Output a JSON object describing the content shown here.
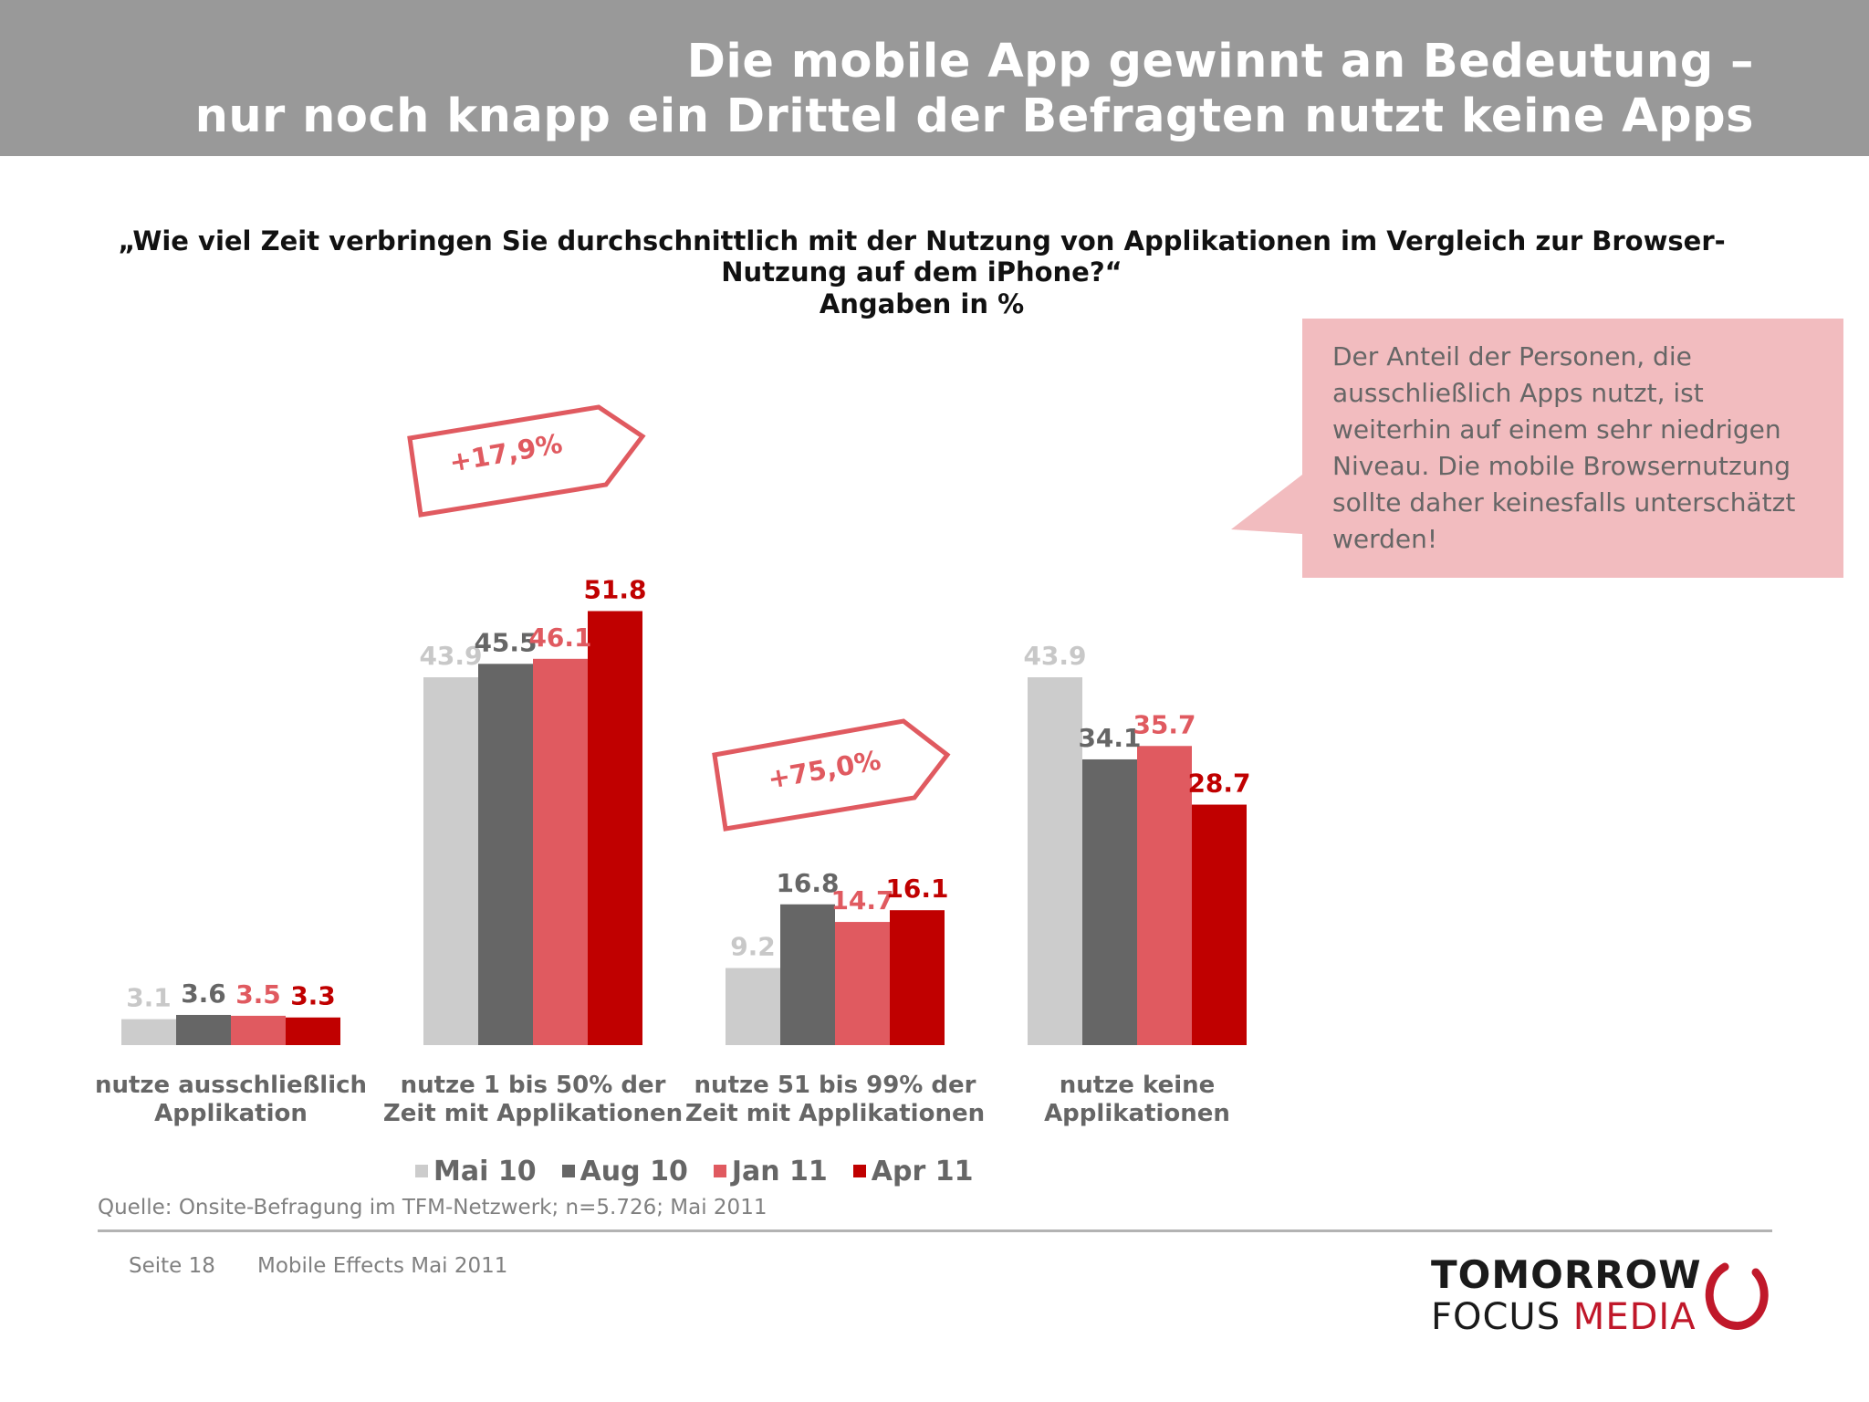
{
  "header": {
    "title_line1": "Die mobile App gewinnt an Bedeutung –",
    "title_line2": "nur noch knapp ein Drittel der Befragten nutzt keine Apps"
  },
  "question": {
    "line1": "„Wie viel Zeit verbringen Sie durchschnittlich mit der Nutzung von Applikationen im Vergleich zur Browser-",
    "line2": "Nutzung auf dem iPhone?“",
    "line3": "Angaben in %"
  },
  "callout": {
    "text": "Der Anteil der Personen, die ausschließlich Apps nutzt, ist weiterhin auf einem sehr niedrigen Niveau. Die mobile Browsernutzung sollte daher keinesfalls unterschätzt werden!"
  },
  "colors": {
    "header_bg": "#999999",
    "mai10": "#cccccc",
    "aug10": "#666666",
    "jan11": "#e05a60",
    "apr11": "#c00000",
    "callout_bg": "#f2bcbf"
  },
  "chart_data": {
    "type": "bar",
    "categories": [
      "nutze ausschließlich Applikation",
      "nutze 1 bis 50% der Zeit mit Applikationen",
      "nutze 51 bis 99% der Zeit mit Applikationen",
      "nutze keine Applikationen"
    ],
    "category_lines": [
      [
        "nutze ausschließlich",
        "Applikation"
      ],
      [
        "nutze 1 bis 50% der",
        "Zeit mit Applikationen"
      ],
      [
        "nutze 51 bis 99% der",
        "Zeit mit Applikationen"
      ],
      [
        "nutze keine",
        "Applikationen"
      ]
    ],
    "series": [
      {
        "name": "Mai 10",
        "color": "#cccccc",
        "label_color": "#c8c8c8",
        "values": [
          3.1,
          43.9,
          9.2,
          43.9
        ]
      },
      {
        "name": "Aug 10",
        "color": "#666666",
        "label_color": "#666666",
        "values": [
          3.6,
          45.5,
          16.8,
          34.1
        ]
      },
      {
        "name": "Jan 11",
        "color": "#e05a60",
        "label_color": "#e05a60",
        "values": [
          3.5,
          46.1,
          14.7,
          35.7
        ]
      },
      {
        "name": "Apr 11",
        "color": "#c00000",
        "label_color": "#c00000",
        "values": [
          3.3,
          51.8,
          16.1,
          28.7
        ]
      }
    ],
    "annotations": [
      {
        "text": "+17,9%",
        "category_index": 1
      },
      {
        "text": "+75,0%",
        "category_index": 2
      }
    ],
    "ylabel": "Angaben in %",
    "ylim": [
      0,
      60
    ],
    "grid": false,
    "legend": "bottom"
  },
  "source": "Quelle: Onsite-Befragung im TFM-Netzwerk; n=5.726; Mai 2011",
  "footer": {
    "page": "Seite 18",
    "doc": "Mobile Effects Mai 2011"
  },
  "logo": {
    "line1": "TOMORROW",
    "line2a": "FOCUS",
    "line2b": " MEDIA"
  }
}
